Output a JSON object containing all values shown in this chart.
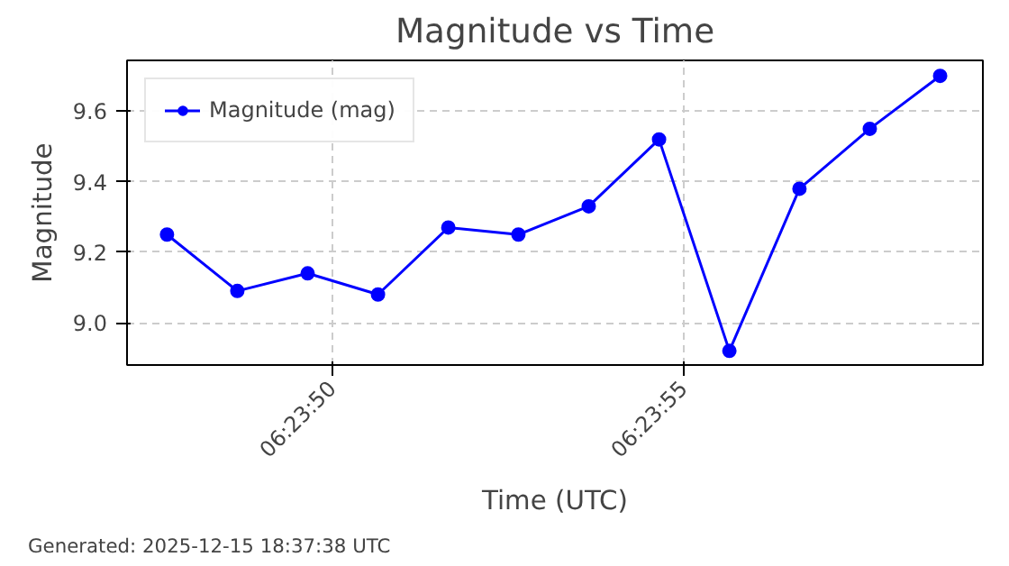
{
  "chart_data": {
    "type": "line",
    "title": "Magnitude vs Time",
    "xlabel": "Time (UTC)",
    "ylabel": "Magnitude",
    "x": [
      6.396569,
      6.396847,
      6.397125,
      6.397403,
      6.397681,
      6.397958,
      6.398236,
      6.398514,
      6.398792,
      6.399069,
      6.399347,
      6.399625
    ],
    "series": [
      {
        "name": "Magnitude (mag)",
        "color": "#0000ff",
        "values": [
          9.25,
          9.09,
          9.14,
          9.08,
          9.27,
          9.25,
          9.33,
          9.52,
          8.92,
          9.38,
          9.55,
          9.7
        ]
      }
    ],
    "xlim": [
      6.396411,
      6.399794
    ],
    "xticks": [
      {
        "value": 6.3972222,
        "label": "06:23:50"
      },
      {
        "value": 6.3986111,
        "label": "06:23:55"
      }
    ],
    "ylim": [
      8.88,
      9.744
    ],
    "yticks": [
      {
        "value": 9.0,
        "label": "9.0"
      },
      {
        "value": 9.2,
        "label": "9.2"
      },
      {
        "value": 9.4,
        "label": "9.4"
      },
      {
        "value": 9.6,
        "label": "9.6"
      }
    ],
    "grid": true,
    "legend": "top left",
    "marker": "circle",
    "line_style": "solid",
    "annotations": [
      "Generated: 2025-12-15 18:37:38 UTC"
    ]
  }
}
